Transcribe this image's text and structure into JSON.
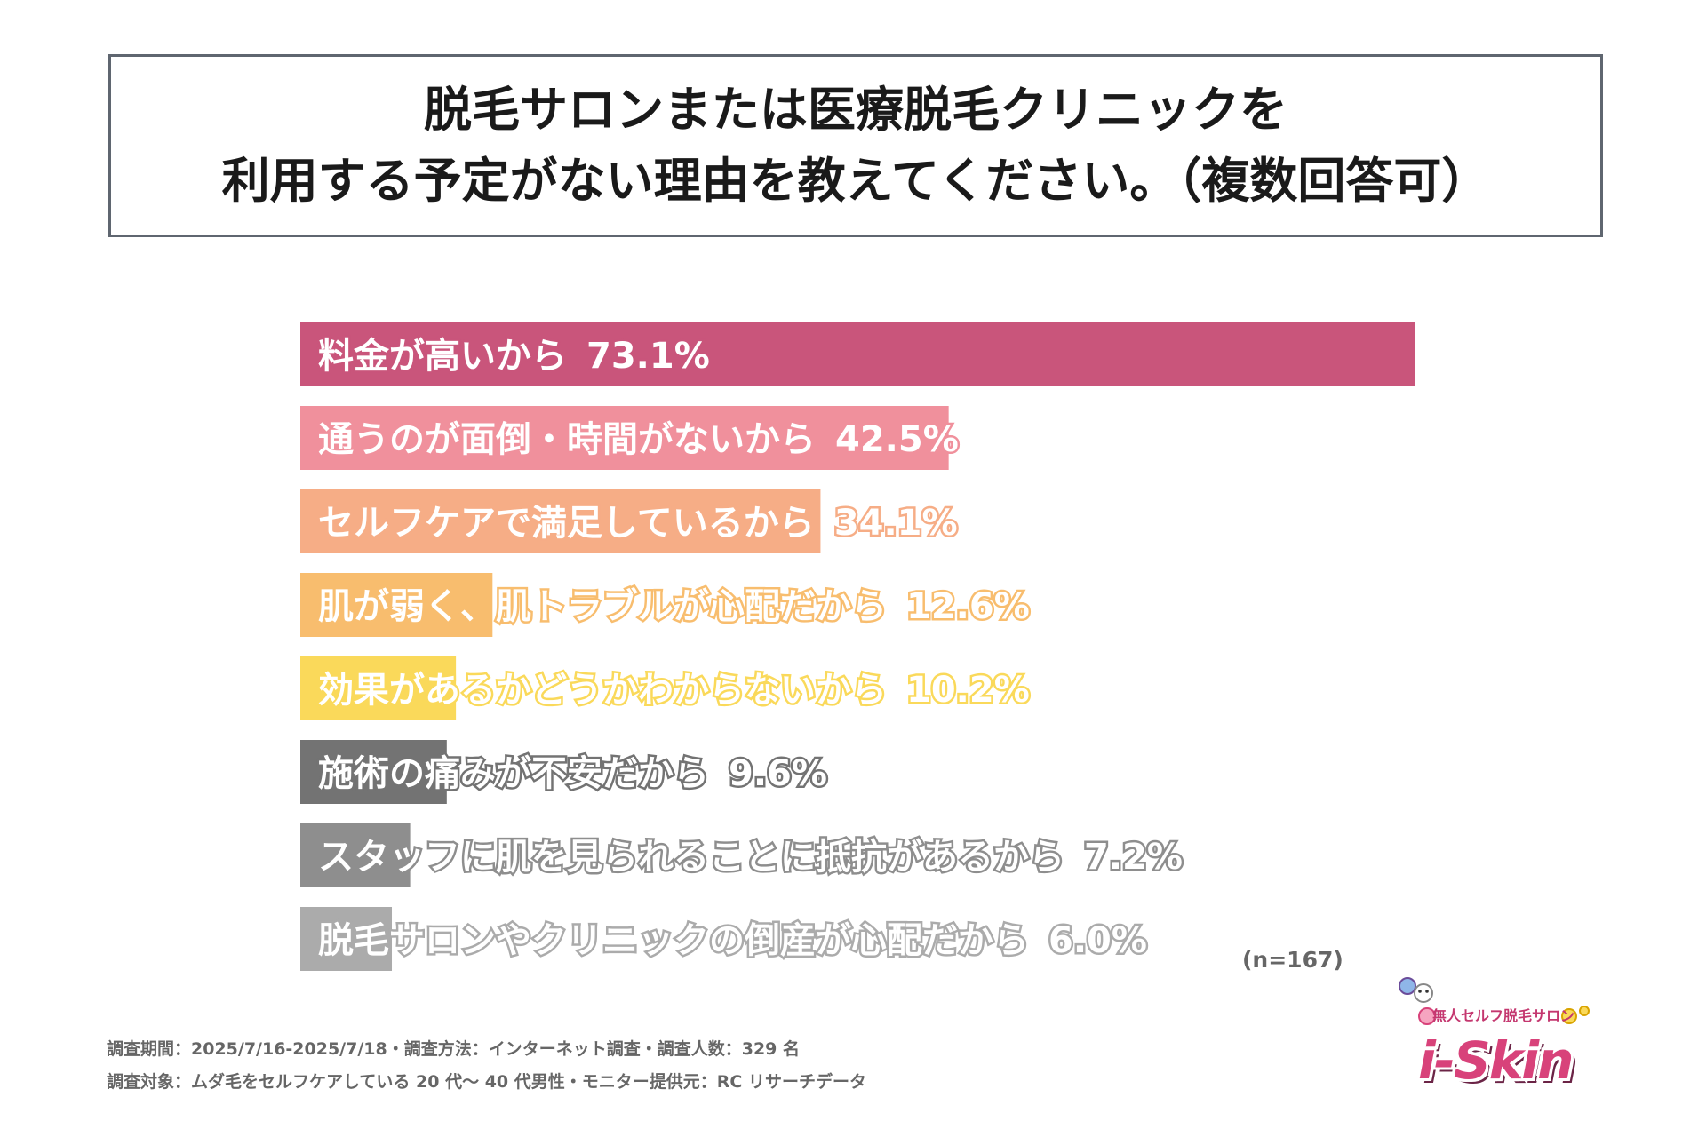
{
  "title": {
    "line1": "脱毛サロンまたは医療脱毛クリニックを",
    "line2": "利用する予定がない理由を教えてください。（複数回答可）"
  },
  "chart_data": {
    "type": "bar",
    "orientation": "horizontal",
    "unit": "%",
    "categories": [
      "料金が高いから",
      "通うのが面倒・時間がないから",
      "セルフケアで満足しているから",
      "肌が弱く、肌トラブルが心配だから",
      "効果があるかどうかわからないから",
      "施術の痛みが不安だから",
      "スタッフに肌を見られることに抵抗があるから",
      "脱毛サロンやクリニックの倒産が心配だから"
    ],
    "values": [
      73.1,
      42.5,
      34.1,
      12.6,
      10.2,
      9.6,
      7.2,
      6.0
    ],
    "value_labels": [
      "73.1%",
      "42.5%",
      "34.1%",
      "12.6%",
      "10.2%",
      "9.6%",
      "7.2%",
      "6.0%"
    ],
    "colors": [
      "#c9557b",
      "#f0909c",
      "#f6ad86",
      "#f8bd6e",
      "#fad95a",
      "#737373",
      "#8e8e8e",
      "#ababab"
    ],
    "xlim": [
      0,
      73.1
    ],
    "grid": false,
    "legend": "none"
  },
  "n_label": "(n=167)",
  "footer": {
    "line1": "調査期間：2025/7/16-2025/7/18・調査方法：インターネット調査・調査人数：329 名",
    "line2": "調査対象：ムダ毛をセルフケアしている 20 代～ 40 代男性・モニター提供元：RC リサーチデータ"
  },
  "logo": {
    "tagline": "無人セルフ脱毛サロン",
    "wordmark": "i-Skin"
  }
}
